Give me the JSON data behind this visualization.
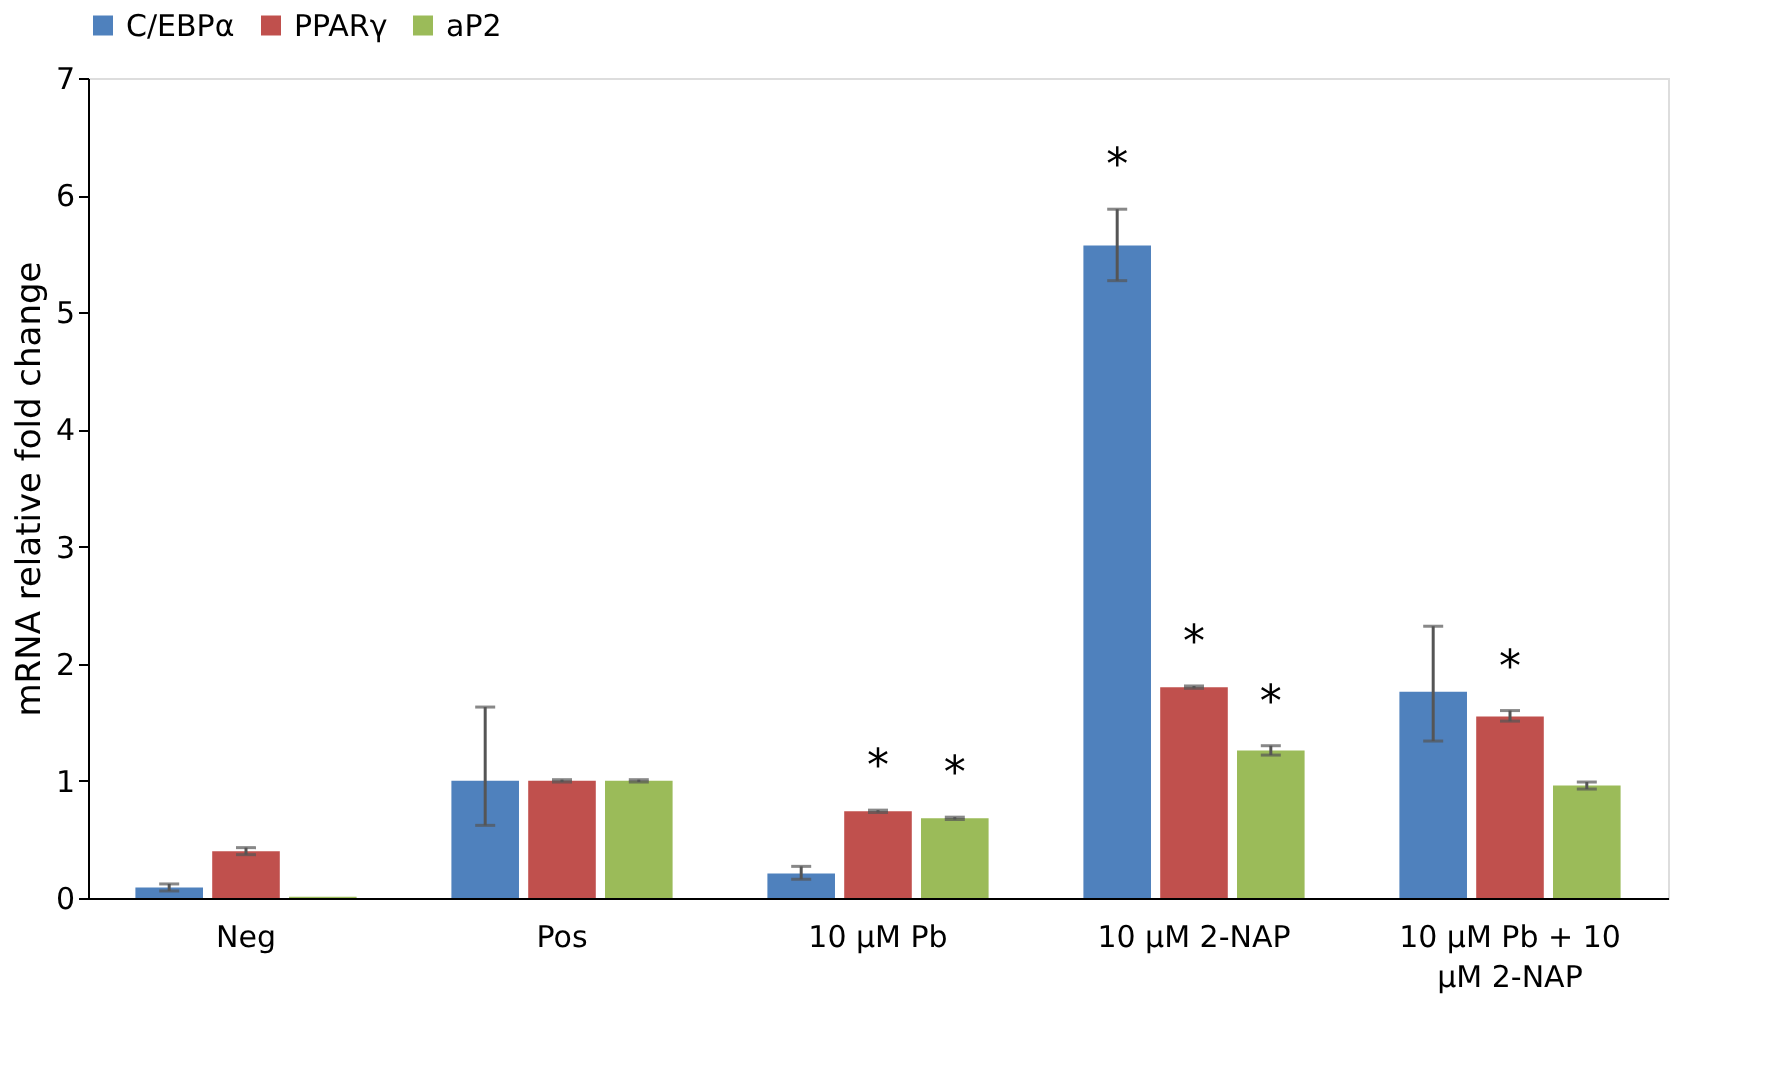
{
  "chart_data": {
    "type": "bar",
    "ylabel": "mRNA relative fold change",
    "categories": [
      "Neg",
      "Pos",
      "10 µM Pb",
      "10 µM 2-NAP",
      "10 µM Pb + 10 µM 2-NAP"
    ],
    "series": [
      {
        "name": "C/EBPα",
        "color": "#4f81bd",
        "values": [
          0.09,
          1.0,
          0.21,
          5.57,
          1.76
        ],
        "errors": [
          [
            0.06,
            0.12
          ],
          [
            0.62,
            1.63
          ],
          [
            0.16,
            0.27
          ],
          [
            5.27,
            5.88
          ],
          [
            1.34,
            2.32
          ]
        ],
        "value_labels": [
          null,
          null,
          null,
          "*",
          null
        ]
      },
      {
        "name": "PPARγ",
        "color": "#c0504d",
        "values": [
          0.4,
          1.0,
          0.74,
          1.8,
          1.55
        ],
        "errors": [
          [
            0.37,
            0.43
          ],
          [
            0.99,
            1.01
          ],
          [
            0.73,
            0.75
          ],
          [
            1.79,
            1.81
          ],
          [
            1.51,
            1.6
          ]
        ],
        "value_labels": [
          null,
          null,
          "*",
          "*",
          "*"
        ]
      },
      {
        "name": "aP2",
        "color": "#9bbb59",
        "values": [
          0.01,
          1.0,
          0.68,
          1.26,
          0.96
        ],
        "errors": [
          null,
          [
            0.99,
            1.01
          ],
          [
            0.67,
            0.69
          ],
          [
            1.22,
            1.3
          ],
          [
            0.93,
            0.99
          ]
        ],
        "value_labels": [
          null,
          null,
          "*",
          "*",
          null
        ]
      }
    ],
    "ylim": [
      0,
      7
    ],
    "yticks": [
      0,
      1,
      2,
      3,
      4,
      5,
      6,
      7
    ],
    "grid": false,
    "legend": "top"
  }
}
